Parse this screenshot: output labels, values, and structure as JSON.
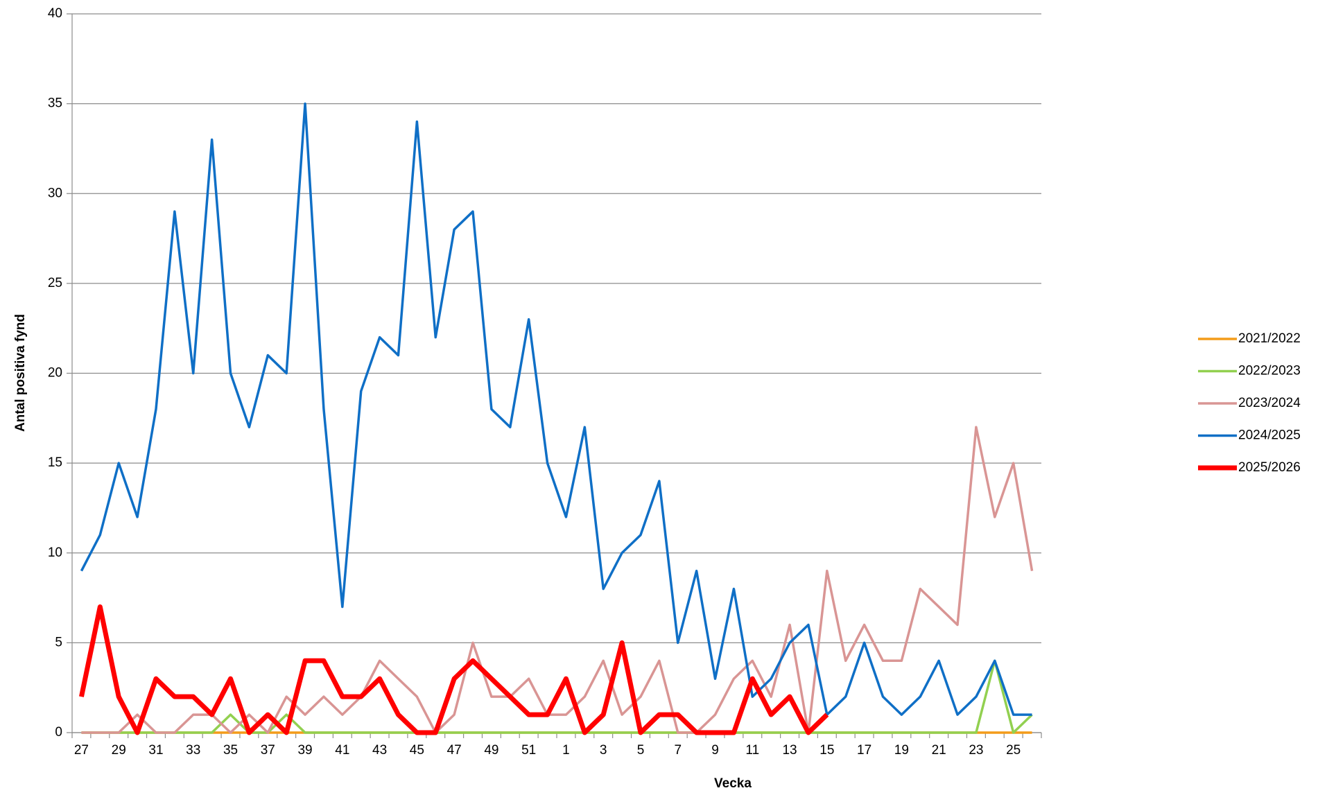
{
  "chart_data": {
    "type": "line",
    "x_label": "Vecka",
    "y_label": "Antal positiva fynd",
    "categories": [
      "27",
      null,
      "29",
      null,
      "31",
      null,
      "33",
      null,
      "35",
      null,
      "37",
      null,
      "39",
      null,
      "41",
      null,
      "43",
      null,
      "45",
      null,
      "47",
      null,
      "49",
      null,
      "51",
      null,
      "1",
      null,
      "3",
      null,
      "5",
      null,
      "7",
      null,
      "9",
      null,
      "11",
      null,
      "13",
      null,
      "15",
      null,
      "17",
      null,
      "19",
      null,
      "21",
      null,
      "23",
      null,
      "25",
      null
    ],
    "ylim": [
      0,
      40
    ],
    "yticks": [
      0,
      5,
      10,
      15,
      20,
      25,
      30,
      35,
      40
    ],
    "grid": true,
    "legend": "right",
    "series": [
      {
        "name": "2021/2022",
        "color": "#f39c1a",
        "width": 3.5,
        "values": [
          0,
          0,
          0,
          0,
          0,
          0,
          0,
          0,
          0,
          0,
          0,
          0,
          0,
          0,
          0,
          0,
          0,
          0,
          0,
          0,
          0,
          0,
          0,
          0,
          0,
          0,
          0,
          0,
          0,
          0,
          0,
          0,
          0,
          0,
          0,
          0,
          0,
          0,
          0,
          0,
          0,
          0,
          0,
          0,
          0,
          0,
          0,
          0,
          0,
          0,
          0,
          0
        ]
      },
      {
        "name": "2022/2023",
        "color": "#92d050",
        "width": 3.5,
        "values": [
          0,
          0,
          0,
          0,
          0,
          0,
          0,
          0,
          1,
          0,
          0,
          1,
          0,
          0,
          0,
          0,
          0,
          0,
          0,
          0,
          0,
          0,
          0,
          0,
          0,
          0,
          0,
          0,
          0,
          0,
          0,
          0,
          0,
          0,
          0,
          0,
          0,
          0,
          0,
          0,
          0,
          0,
          0,
          0,
          0,
          0,
          0,
          0,
          0,
          4,
          0,
          1
        ]
      },
      {
        "name": "2023/2024",
        "color": "#d99594",
        "width": 3.5,
        "values": [
          0,
          0,
          0,
          1,
          0,
          0,
          1,
          1,
          0,
          1,
          0,
          2,
          1,
          2,
          1,
          2,
          4,
          3,
          2,
          0,
          1,
          5,
          2,
          2,
          3,
          1,
          1,
          2,
          4,
          1,
          2,
          4,
          0,
          0,
          1,
          3,
          4,
          2,
          6,
          0,
          9,
          4,
          6,
          4,
          4,
          8,
          7,
          6,
          17,
          12,
          15,
          9
        ]
      },
      {
        "name": "2024/2025",
        "color": "#0f6fc6",
        "width": 3.5,
        "values": [
          9,
          11,
          15,
          12,
          18,
          29,
          20,
          33,
          20,
          17,
          21,
          20,
          35,
          18,
          7,
          19,
          22,
          21,
          34,
          22,
          28,
          29,
          18,
          17,
          23,
          15,
          12,
          17,
          8,
          10,
          11,
          14,
          5,
          9,
          3,
          8,
          2,
          3,
          5,
          6,
          1,
          2,
          5,
          2,
          1,
          2,
          4,
          1,
          2,
          4,
          1,
          1
        ]
      },
      {
        "name": "2025/2026",
        "color": "#ff0000",
        "width": 7,
        "values": [
          2,
          7,
          2,
          0,
          3,
          2,
          2,
          1,
          3,
          0,
          1,
          0,
          4,
          4,
          2,
          2,
          3,
          1,
          0,
          0,
          3,
          4,
          3,
          2,
          1,
          1,
          3,
          0,
          1,
          5,
          0,
          1,
          1,
          0,
          0,
          0,
          3,
          1,
          2,
          0,
          1,
          null,
          null,
          null,
          null,
          null,
          null,
          null,
          null,
          null,
          null,
          null
        ]
      }
    ]
  }
}
